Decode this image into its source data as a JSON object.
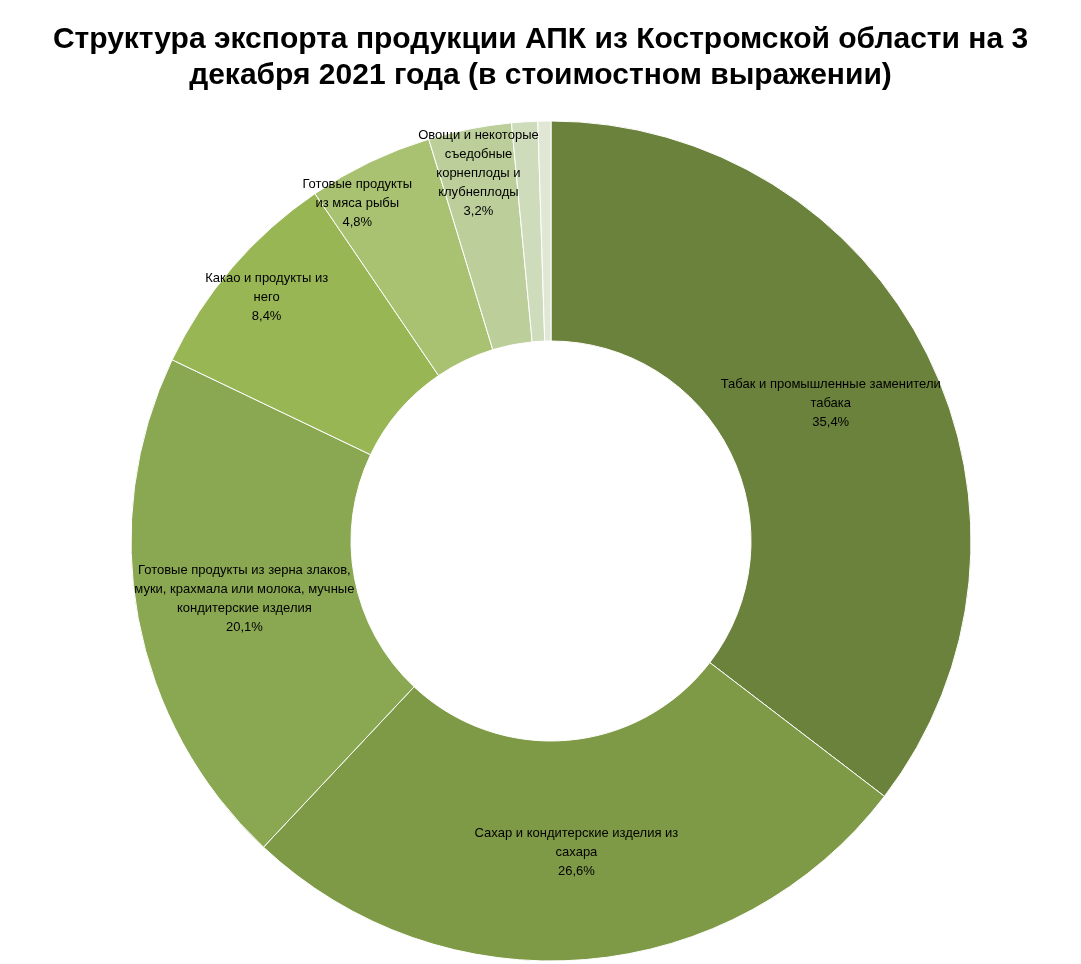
{
  "chart_data": {
    "type": "donut",
    "title": "Структура экспорта продукции АПК из Костромской области на 3 декабря 2021 года (в стоимостном выражении)",
    "categories": [
      "Табак и промышленные заменители табака",
      "Сахар и кондитерские изделия из сахара",
      "Готовые продукты из зерна злаков, муки, крахмала или молока, мучные кондитерские изделия",
      "Какао и продукты из него",
      "Готовые продукты из мяса рыбы",
      "Овощи и некоторые съедобные корнеплоды и клубнеплоды",
      null,
      null
    ],
    "values": [
      35.4,
      26.6,
      20.1,
      8.4,
      4.8,
      3.2,
      1.0,
      0.5
    ],
    "value_labels": [
      "35,4%",
      "26,6%",
      "20,1%",
      "8,4%",
      "4,8%",
      "3,2%",
      null,
      null
    ],
    "colors": [
      "#6b823c",
      "#7f9a46",
      "#8aa852",
      "#98b654",
      "#a9c272",
      "#bccf9b",
      "#cfdcbb",
      "#e0e8d5"
    ],
    "legend": false
  }
}
